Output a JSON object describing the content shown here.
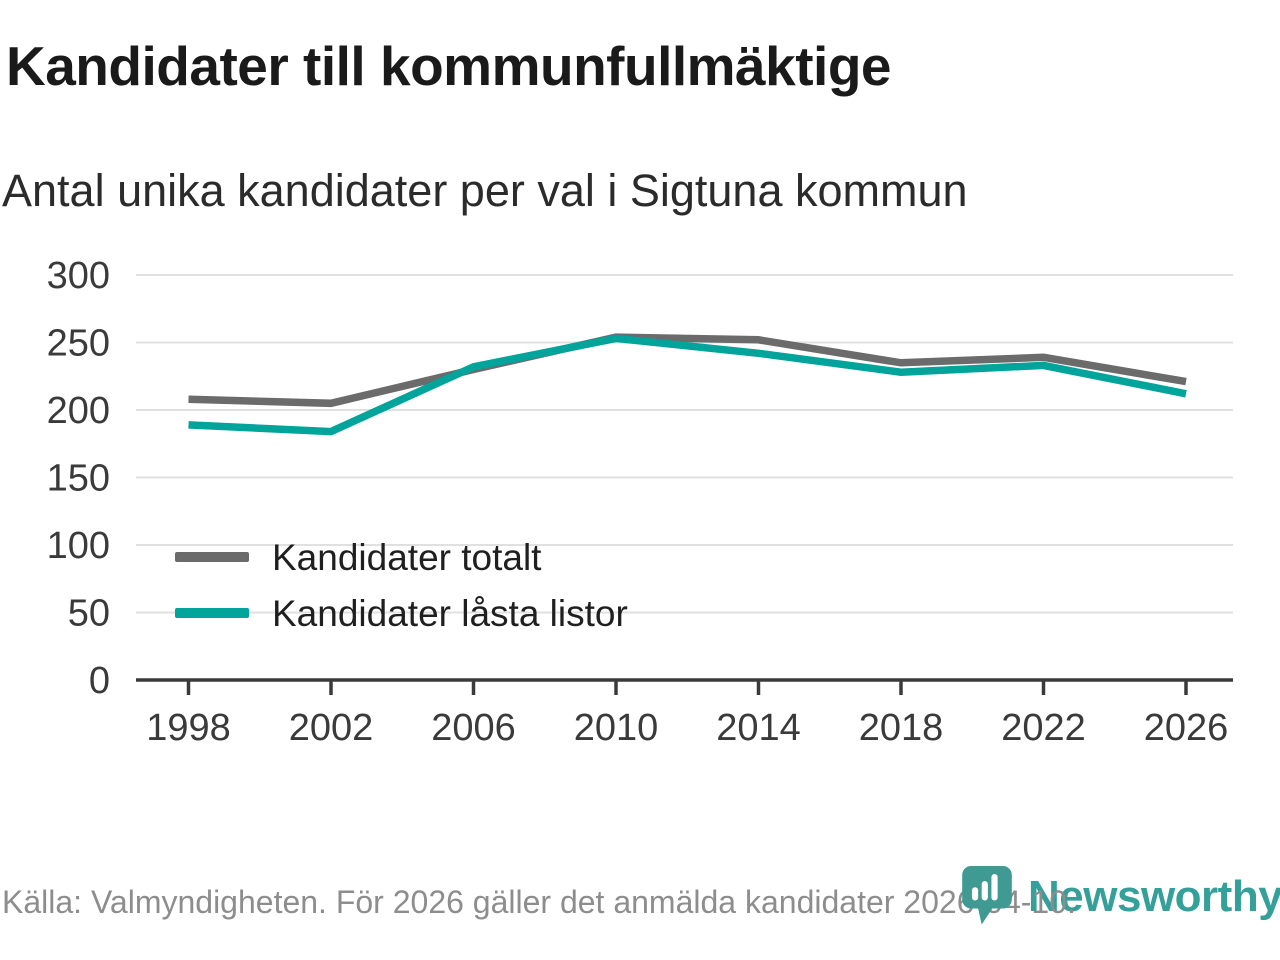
{
  "header": {
    "title": "Kandidater till kommunfullmäktige",
    "subtitle": "Antal unika kandidater per val i Sigtuna kommun"
  },
  "chart_data": {
    "type": "line",
    "x": [
      1998,
      2002,
      2006,
      2010,
      2014,
      2018,
      2022,
      2026
    ],
    "series": [
      {
        "key": "kandidater-totalt",
        "name": "Kandidater totalt",
        "color": "#6b6b6b",
        "values": [
          208,
          205,
          230,
          254,
          252,
          235,
          239,
          221
        ]
      },
      {
        "key": "kandidater-lasta-listor",
        "name": "Kandidater låsta listor",
        "color": "#00a49a",
        "values": [
          189,
          184,
          232,
          253,
          242,
          228,
          233,
          212
        ]
      }
    ],
    "ylim": [
      0,
      300
    ],
    "yticks": [
      0,
      50,
      100,
      150,
      200,
      250,
      300
    ],
    "grid": "horizontal",
    "legend_position": "inside-left-middle",
    "title": "Kandidater till kommunfullmäktige",
    "xlabel": "",
    "ylabel": ""
  },
  "footer": {
    "source": "Källa: Valmyndigheten. För 2026 gäller det anmälda kandidater 2026-04-10.",
    "brand": "Newsworthy",
    "brand_color": "#35a099",
    "brand_pin_color": "#3f9a93"
  },
  "style_colors": {
    "axis": "#3a3a3a",
    "tick_label": "#3a3a3a",
    "gridline": "#e0e0e0",
    "legend_text": "#1f1f1f"
  }
}
